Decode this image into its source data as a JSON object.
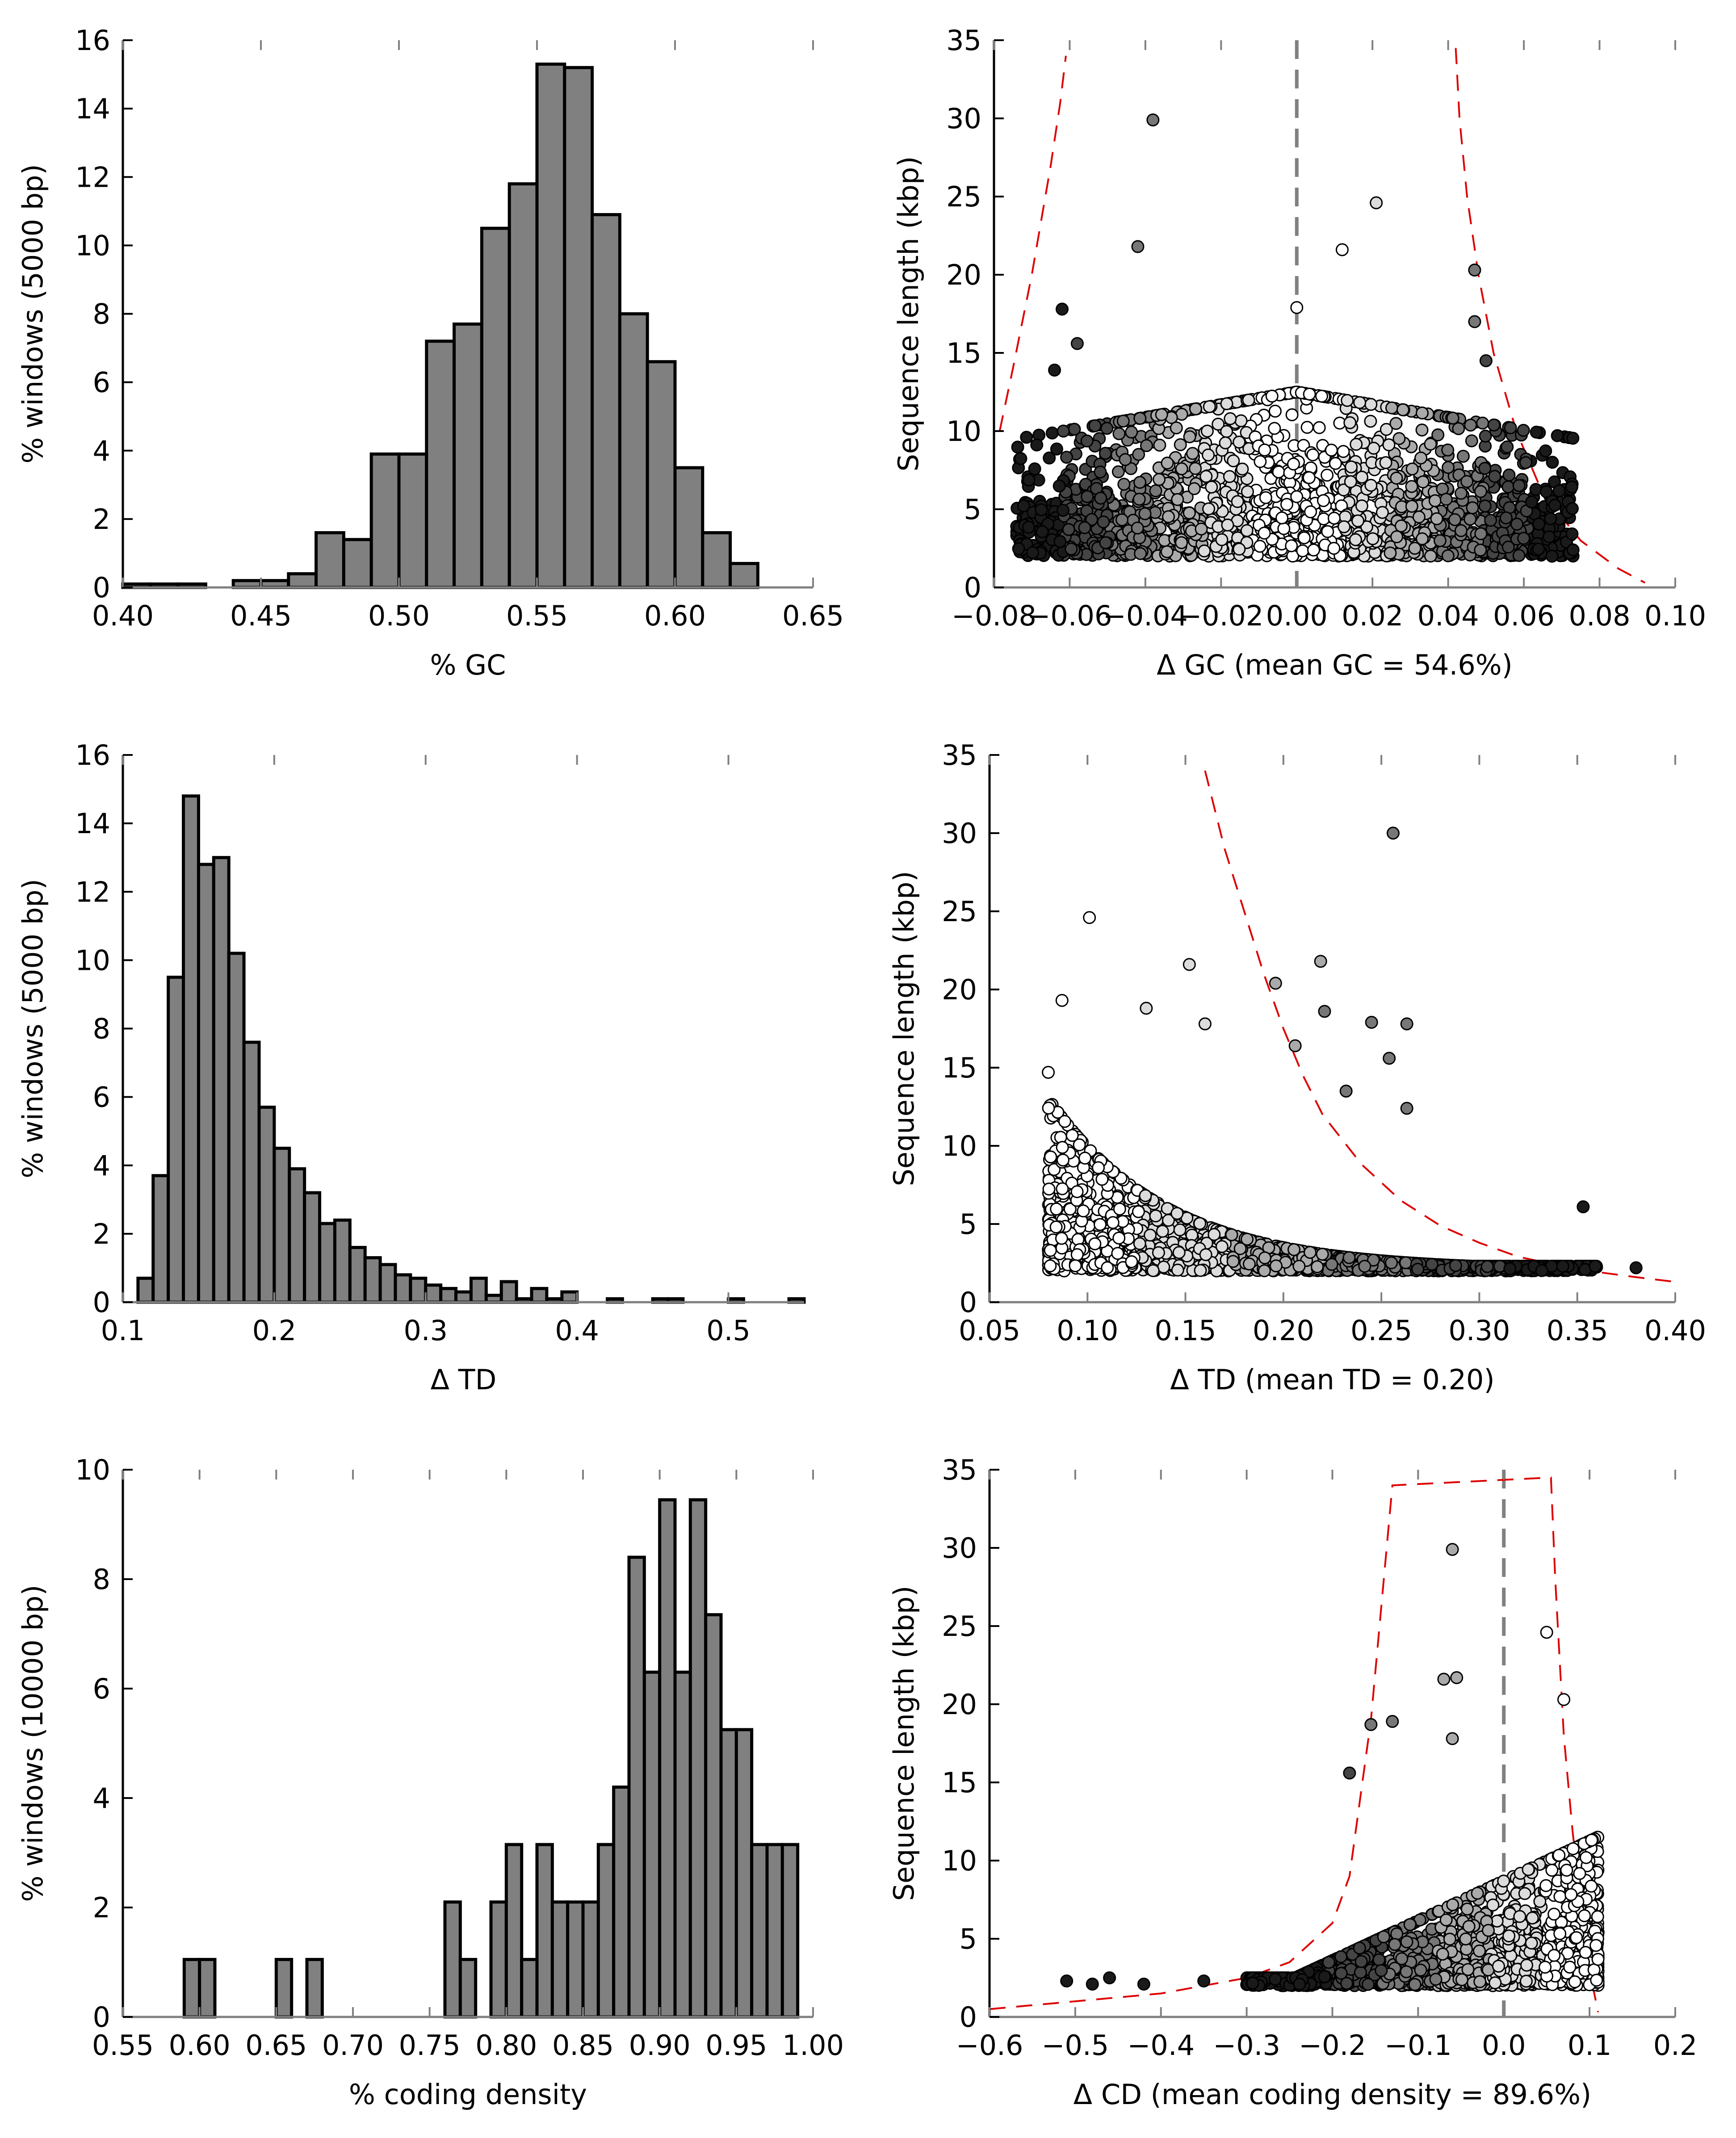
{
  "chart_data": [
    {
      "panel": "gc-histogram",
      "type": "bar",
      "xlabel": "% GC",
      "ylabel": "% windows (5000 bp)",
      "xlim": [
        0.4,
        0.65
      ],
      "ylim": [
        0,
        16
      ],
      "xticks": [
        "0.40",
        "0.45",
        "0.50",
        "0.55",
        "0.60",
        "0.65"
      ],
      "yticks": [
        "0",
        "2",
        "4",
        "6",
        "8",
        "10",
        "12",
        "14",
        "16"
      ],
      "bin_edges": [
        0.4,
        0.41,
        0.42,
        0.43,
        0.44,
        0.45,
        0.46,
        0.47,
        0.48,
        0.49,
        0.5,
        0.51,
        0.52,
        0.53,
        0.54,
        0.55,
        0.56,
        0.57,
        0.58,
        0.59,
        0.6,
        0.61,
        0.62,
        0.63
      ],
      "values": [
        0.1,
        0.1,
        0.1,
        0.0,
        0.2,
        0.2,
        0.4,
        1.6,
        1.4,
        3.9,
        3.9,
        7.2,
        7.7,
        10.5,
        11.8,
        15.3,
        15.2,
        10.9,
        8.0,
        6.6,
        3.5,
        1.6,
        0.7
      ],
      "bar_color": "#808080",
      "grid": false
    },
    {
      "panel": "gc-scatter",
      "type": "scatter",
      "xlabel": "Δ GC (mean GC = 54.6%)",
      "ylabel": "Sequence length (kbp)",
      "xlim": [
        -0.08,
        0.1
      ],
      "ylim": [
        0,
        35
      ],
      "xticks": [
        "−0.08",
        "−0.06",
        "−0.04",
        "−0.02",
        "0.00",
        "0.02",
        "0.04",
        "0.06",
        "0.08",
        "0.10"
      ],
      "yticks": [
        "0",
        "5",
        "10",
        "15",
        "20",
        "25",
        "30",
        "35"
      ],
      "reference_line_x": 0.0,
      "boundary_curve": {
        "x": [
          -0.0785,
          -0.075,
          -0.07,
          -0.065,
          -0.0625,
          -0.061,
          0.042,
          0.043,
          0.045,
          0.048,
          0.052,
          0.058,
          0.065,
          0.075,
          0.085,
          0.092
        ],
        "y": [
          10,
          14,
          20,
          27,
          31,
          34,
          34.5,
          30,
          25,
          20,
          15,
          10,
          6,
          3,
          1.2,
          0.3
        ]
      },
      "labeled_points": [
        {
          "x": -0.038,
          "y": 29.9
        },
        {
          "x": 0.021,
          "y": 24.6
        },
        {
          "x": -0.042,
          "y": 21.8
        },
        {
          "x": 0.012,
          "y": 21.6
        },
        {
          "x": 0.047,
          "y": 20.3
        },
        {
          "x": 0.0,
          "y": 17.9
        },
        {
          "x": -0.062,
          "y": 17.8
        },
        {
          "x": 0.047,
          "y": 17.0
        },
        {
          "x": -0.058,
          "y": 15.6
        },
        {
          "x": 0.05,
          "y": 14.5
        },
        {
          "x": -0.064,
          "y": 13.9
        },
        {
          "x": 0.073,
          "y": 2.4
        }
      ],
      "cluster": {
        "n": 1800,
        "x_range": [
          -0.074,
          0.073
        ],
        "y_min": 2.0,
        "y_typical_max": 10,
        "shading": "by |Δ GC|: white near 0, grey mid, black at extremes"
      },
      "marker_colors": [
        "#ffffff",
        "#dcdcdc",
        "#aaaaaa",
        "#777777",
        "#444444",
        "#1a1a1a"
      ],
      "curve_color": "#dd0000",
      "grid": false
    },
    {
      "panel": "td-histogram",
      "type": "bar",
      "xlabel": "Δ TD",
      "ylabel": "% windows (5000 bp)",
      "xlim": [
        0.1,
        0.55
      ],
      "ylim": [
        0,
        16
      ],
      "xticks": [
        "0.1",
        "0.2",
        "0.3",
        "0.4",
        "0.5"
      ],
      "yticks": [
        "0",
        "2",
        "4",
        "6",
        "8",
        "10",
        "12",
        "14",
        "16"
      ],
      "bin_width": 0.01,
      "bin_start": 0.11,
      "values": [
        0.7,
        3.7,
        9.5,
        14.8,
        12.8,
        13.0,
        10.2,
        7.6,
        5.7,
        4.5,
        3.9,
        3.2,
        2.3,
        2.4,
        1.6,
        1.3,
        1.1,
        0.8,
        0.7,
        0.5,
        0.4,
        0.3,
        0.7,
        0.2,
        0.6,
        0.1,
        0.4,
        0.1,
        0.3,
        0.0,
        0.0,
        0.1,
        0.0,
        0.0,
        0.1,
        0.1,
        0.0,
        0.0,
        0.0,
        0.1,
        0.0,
        0.0,
        0.0,
        0.1
      ],
      "bar_color": "#808080",
      "grid": false
    },
    {
      "panel": "td-scatter",
      "type": "scatter",
      "xlabel": "Δ TD (mean TD = 0.20)",
      "ylabel": "Sequence length (kbp)",
      "xlim": [
        0.05,
        0.4
      ],
      "ylim": [
        0,
        35
      ],
      "xticks": [
        "0.05",
        "0.10",
        "0.15",
        "0.20",
        "0.25",
        "0.30",
        "0.35",
        "0.40"
      ],
      "yticks": [
        "0",
        "5",
        "10",
        "15",
        "20",
        "25",
        "30",
        "35"
      ],
      "boundary_curve": {
        "x": [
          0.16,
          0.17,
          0.18,
          0.19,
          0.2,
          0.21,
          0.22,
          0.24,
          0.26,
          0.28,
          0.3,
          0.32,
          0.35,
          0.38,
          0.4
        ],
        "y": [
          34,
          29,
          25,
          21,
          17.5,
          14.5,
          12,
          8.8,
          6.5,
          4.9,
          3.8,
          2.9,
          2.1,
          1.6,
          1.3
        ]
      },
      "labeled_points": [
        {
          "x": 0.256,
          "y": 30.0
        },
        {
          "x": 0.101,
          "y": 24.6
        },
        {
          "x": 0.219,
          "y": 21.8
        },
        {
          "x": 0.152,
          "y": 21.6
        },
        {
          "x": 0.196,
          "y": 20.4
        },
        {
          "x": 0.087,
          "y": 19.3
        },
        {
          "x": 0.13,
          "y": 18.8
        },
        {
          "x": 0.221,
          "y": 18.6
        },
        {
          "x": 0.245,
          "y": 17.9
        },
        {
          "x": 0.263,
          "y": 17.8
        },
        {
          "x": 0.16,
          "y": 17.8
        },
        {
          "x": 0.206,
          "y": 16.4
        },
        {
          "x": 0.254,
          "y": 15.6
        },
        {
          "x": 0.08,
          "y": 14.7
        },
        {
          "x": 0.232,
          "y": 13.5
        },
        {
          "x": 0.263,
          "y": 12.4
        },
        {
          "x": 0.353,
          "y": 6.1
        },
        {
          "x": 0.38,
          "y": 2.2
        }
      ],
      "cluster": {
        "n": 1800,
        "x_range": [
          0.08,
          0.38
        ],
        "y_min": 2.0,
        "y_typical_max": 10,
        "shading": "white at low TD, grey mid, black at high TD"
      },
      "marker_colors": [
        "#ffffff",
        "#dcdcdc",
        "#aaaaaa",
        "#777777",
        "#444444",
        "#1a1a1a"
      ],
      "curve_color": "#dd0000",
      "grid": false
    },
    {
      "panel": "cd-histogram",
      "type": "bar",
      "xlabel": "% coding density",
      "ylabel": "% windows (10000 bp)",
      "xlim": [
        0.55,
        1.0
      ],
      "ylim": [
        0,
        10
      ],
      "xticks": [
        "0.55",
        "0.60",
        "0.65",
        "0.70",
        "0.75",
        "0.80",
        "0.85",
        "0.90",
        "0.95",
        "1.00"
      ],
      "yticks": [
        "0",
        "2",
        "4",
        "6",
        "8",
        "10"
      ],
      "bin_width": 0.01,
      "bin_start": 0.59,
      "values": [
        1.05,
        1.05,
        0.0,
        0.0,
        0.0,
        0.0,
        1.05,
        0.0,
        1.05,
        0.0,
        0.0,
        0.0,
        0.0,
        0.0,
        0.0,
        0.0,
        0.0,
        2.1,
        1.05,
        0.0,
        2.1,
        3.15,
        1.05,
        3.15,
        2.1,
        2.1,
        2.1,
        3.15,
        4.2,
        8.4,
        6.3,
        9.45,
        6.3,
        9.45,
        7.35,
        5.25,
        5.25,
        3.15,
        3.15,
        3.15
      ],
      "bar_color": "#808080",
      "grid": false
    },
    {
      "panel": "cd-scatter",
      "type": "scatter",
      "xlabel": "Δ CD (mean coding density = 89.6%)",
      "ylabel": "Sequence length (kbp)",
      "xlim": [
        -0.6,
        0.2
      ],
      "ylim": [
        0,
        35
      ],
      "xticks": [
        "−0.6",
        "−0.5",
        "−0.4",
        "−0.3",
        "−0.2",
        "−0.1",
        "0.0",
        "0.1",
        "0.2"
      ],
      "yticks": [
        "0",
        "5",
        "10",
        "15",
        "20",
        "25",
        "30",
        "35"
      ],
      "reference_line_x": 0.0,
      "boundary_curve": {
        "x": [
          -0.6,
          -0.5,
          -0.4,
          -0.3,
          -0.25,
          -0.2,
          -0.18,
          -0.17,
          -0.155,
          -0.14,
          -0.13,
          0.055,
          0.06,
          0.07,
          0.08,
          0.09,
          0.1,
          0.11
        ],
        "y": [
          0.5,
          1.0,
          1.5,
          2.5,
          3.5,
          6,
          9,
          13,
          19,
          28,
          34,
          34.5,
          28,
          18,
          12,
          7,
          3,
          0.3
        ]
      },
      "labeled_points": [
        {
          "x": -0.06,
          "y": 29.9
        },
        {
          "x": 0.05,
          "y": 24.6
        },
        {
          "x": -0.055,
          "y": 21.7
        },
        {
          "x": -0.07,
          "y": 21.6
        },
        {
          "x": 0.07,
          "y": 20.3
        },
        {
          "x": -0.13,
          "y": 18.9
        },
        {
          "x": -0.155,
          "y": 18.7
        },
        {
          "x": -0.06,
          "y": 17.8
        },
        {
          "x": -0.18,
          "y": 15.6
        },
        {
          "x": -0.51,
          "y": 2.3
        },
        {
          "x": -0.46,
          "y": 2.5
        },
        {
          "x": -0.42,
          "y": 2.1
        },
        {
          "x": -0.48,
          "y": 2.1
        },
        {
          "x": -0.35,
          "y": 2.3
        }
      ],
      "cluster": {
        "n": 1600,
        "x_range": [
          -0.3,
          0.11
        ],
        "y_min": 2.0,
        "y_typical_max": 10,
        "shading": "white near 0 and positive, grey negative, black at far negative"
      },
      "marker_colors": [
        "#ffffff",
        "#dcdcdc",
        "#aaaaaa",
        "#777777",
        "#444444",
        "#1a1a1a"
      ],
      "curve_color": "#dd0000",
      "grid": false
    }
  ]
}
